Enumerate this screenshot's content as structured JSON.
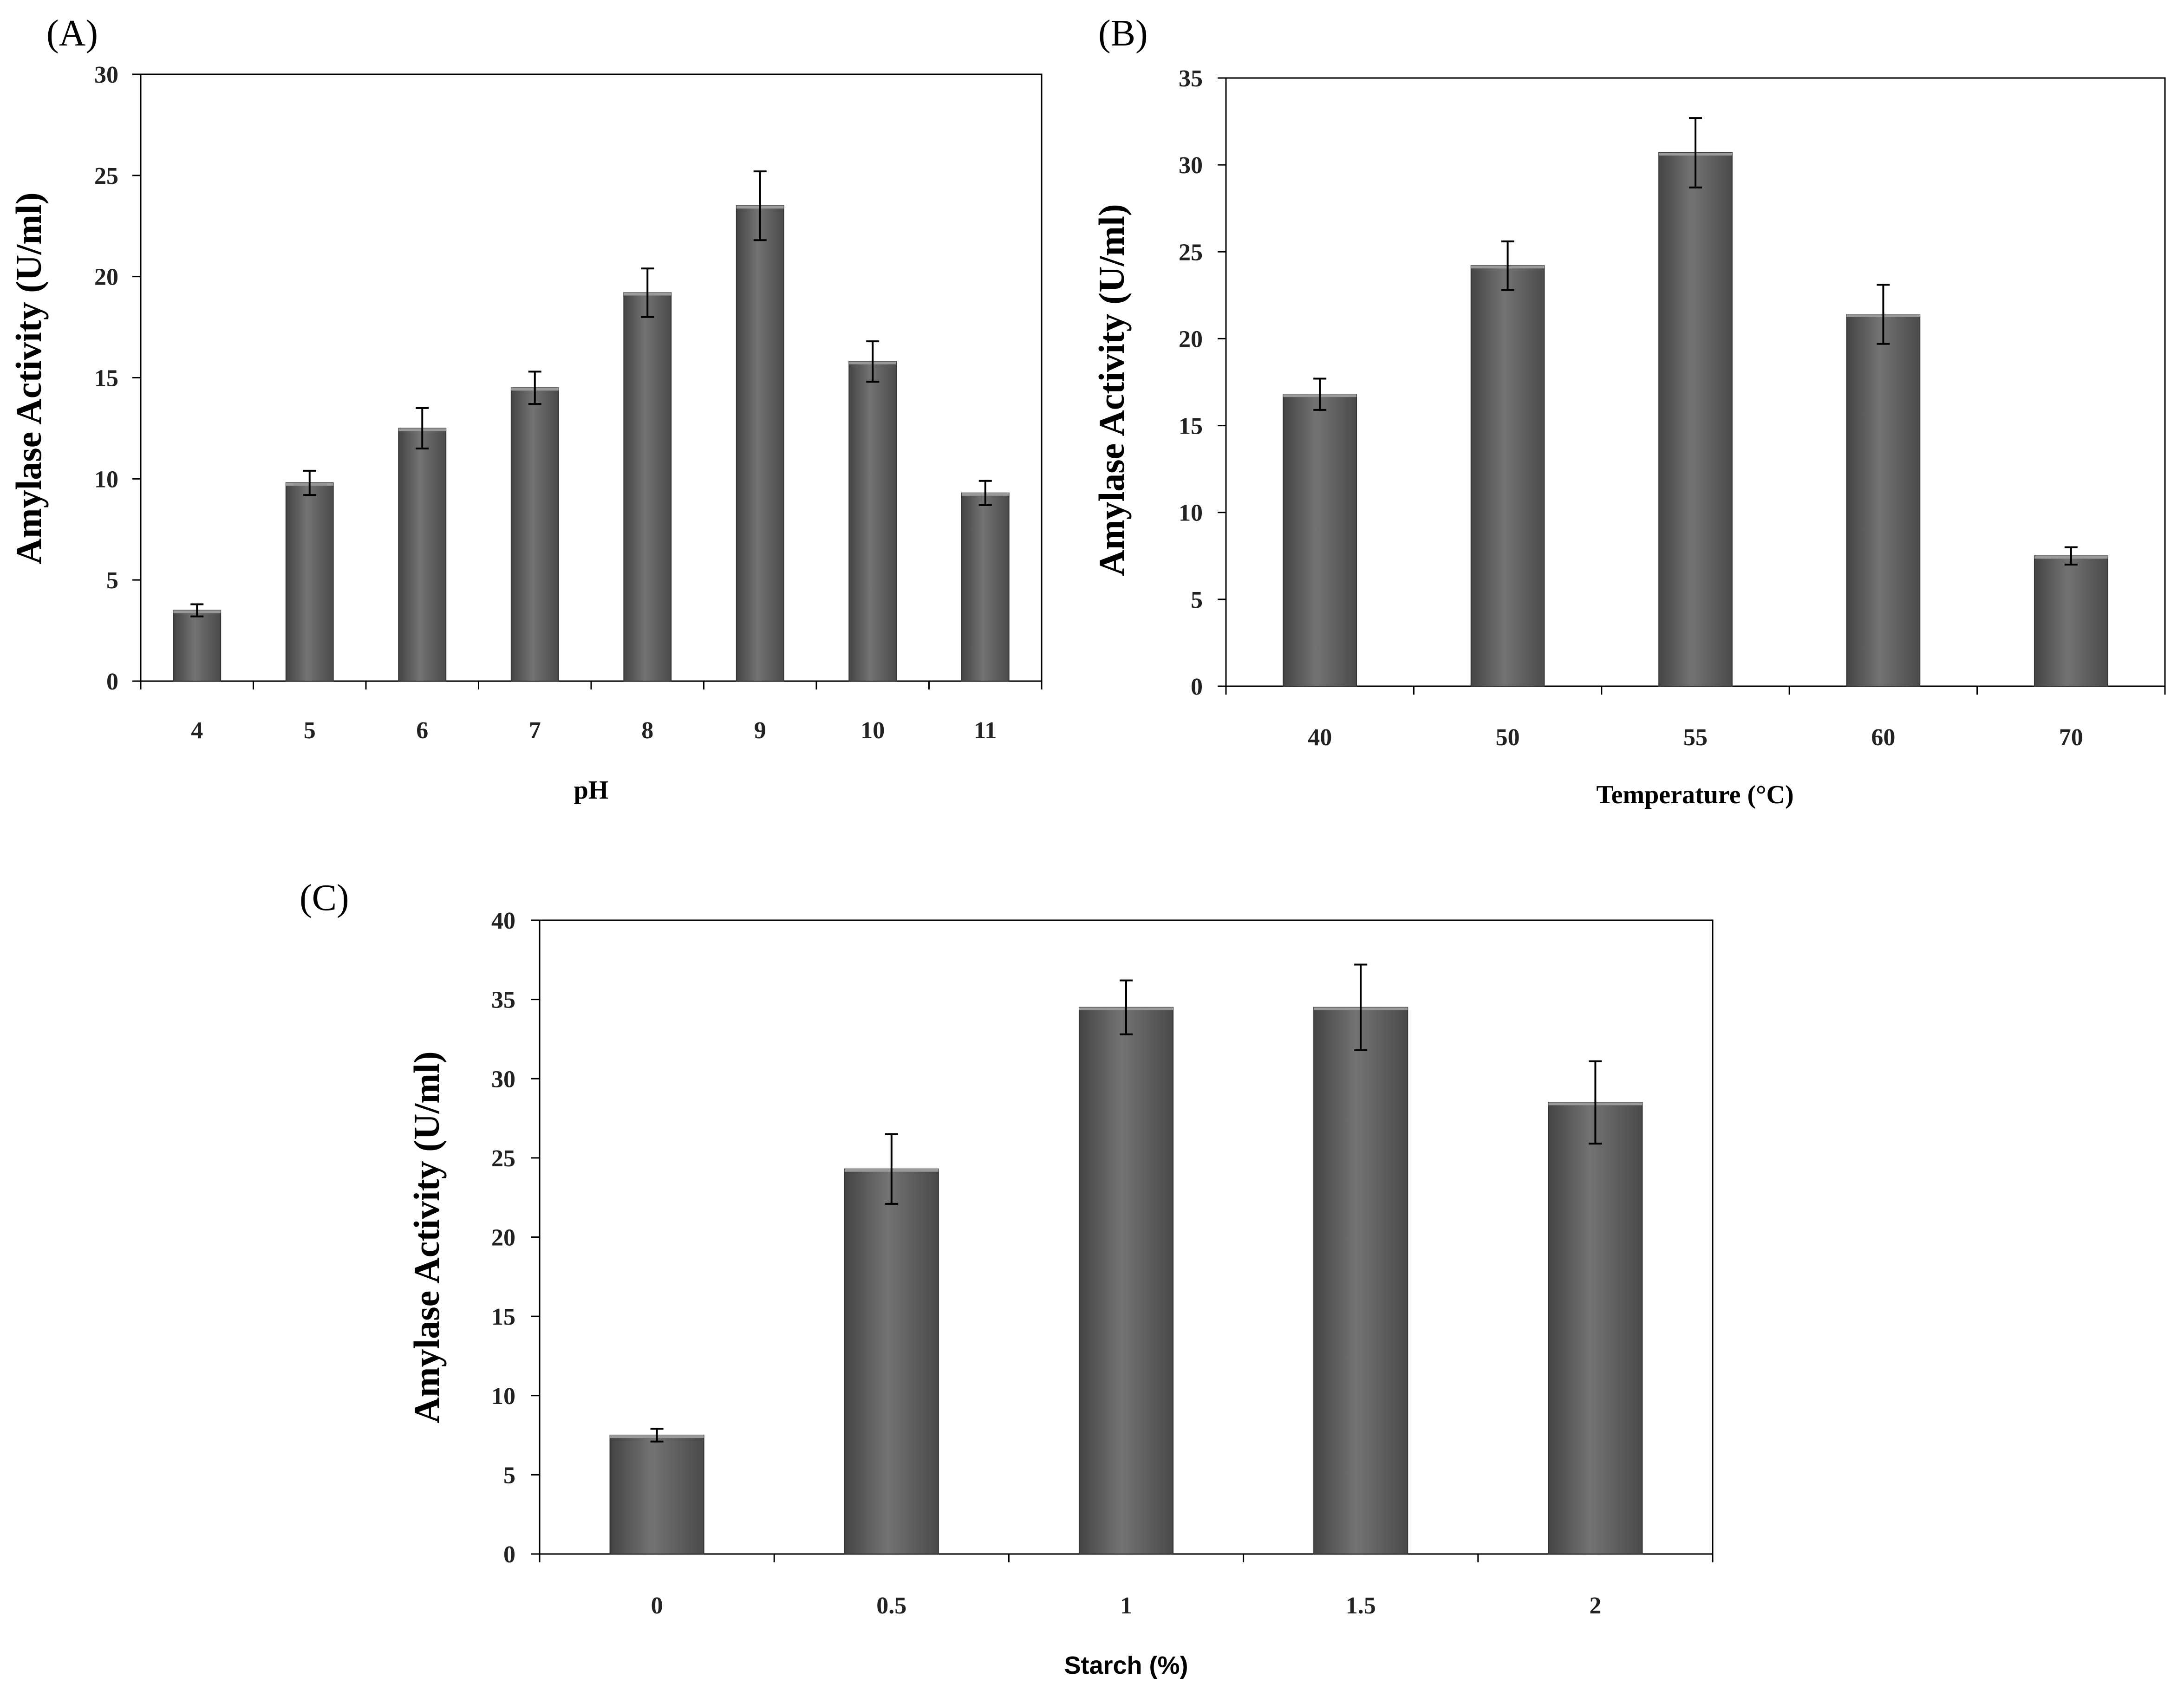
{
  "colors": {
    "bar_dark": "#444444",
    "bar_mid": "#6e6e6e",
    "bar_light": "#8a8a8a",
    "axis": "#000000"
  },
  "chart_data": [
    {
      "id": "A",
      "panel_label": "(A)",
      "type": "bar",
      "title": "",
      "xlabel": "pH",
      "ylabel": "Amylase Activity (U/ml)",
      "categories": [
        "4",
        "5",
        "6",
        "7",
        "8",
        "9",
        "10",
        "11"
      ],
      "values": [
        3.5,
        9.8,
        12.5,
        14.5,
        19.2,
        23.5,
        15.8,
        9.3
      ],
      "errors": [
        0.3,
        0.6,
        1.0,
        0.8,
        1.2,
        1.7,
        1.0,
        0.6
      ],
      "ylim": [
        0,
        30
      ],
      "yticks": [
        "0",
        "5",
        "10",
        "15",
        "20",
        "25",
        "30"
      ],
      "grid": false
    },
    {
      "id": "B",
      "panel_label": "(B)",
      "type": "bar",
      "title": "",
      "xlabel": "Temperature (°C)",
      "ylabel": "Amylase Activity (U/ml)",
      "categories": [
        "40",
        "50",
        "55",
        "60",
        "70"
      ],
      "values": [
        16.8,
        24.2,
        30.7,
        21.4,
        7.5
      ],
      "errors": [
        0.9,
        1.4,
        2.0,
        1.7,
        0.5
      ],
      "ylim": [
        0,
        35
      ],
      "yticks": [
        "0",
        "5",
        "10",
        "15",
        "20",
        "25",
        "30",
        "35"
      ],
      "grid": false
    },
    {
      "id": "C",
      "panel_label": "(C)",
      "type": "bar",
      "title": "",
      "xlabel": "Starch (%)",
      "ylabel": "Amylase Activity (U/ml)",
      "categories": [
        "0",
        "0.5",
        "1",
        "1.5",
        "2"
      ],
      "values": [
        7.5,
        24.3,
        34.5,
        34.5,
        28.5
      ],
      "errors": [
        0.4,
        2.2,
        1.7,
        2.7,
        2.6
      ],
      "ylim": [
        0,
        40
      ],
      "yticks": [
        "0",
        "5",
        "10",
        "15",
        "20",
        "25",
        "30",
        "35",
        "40"
      ],
      "grid": false
    }
  ]
}
